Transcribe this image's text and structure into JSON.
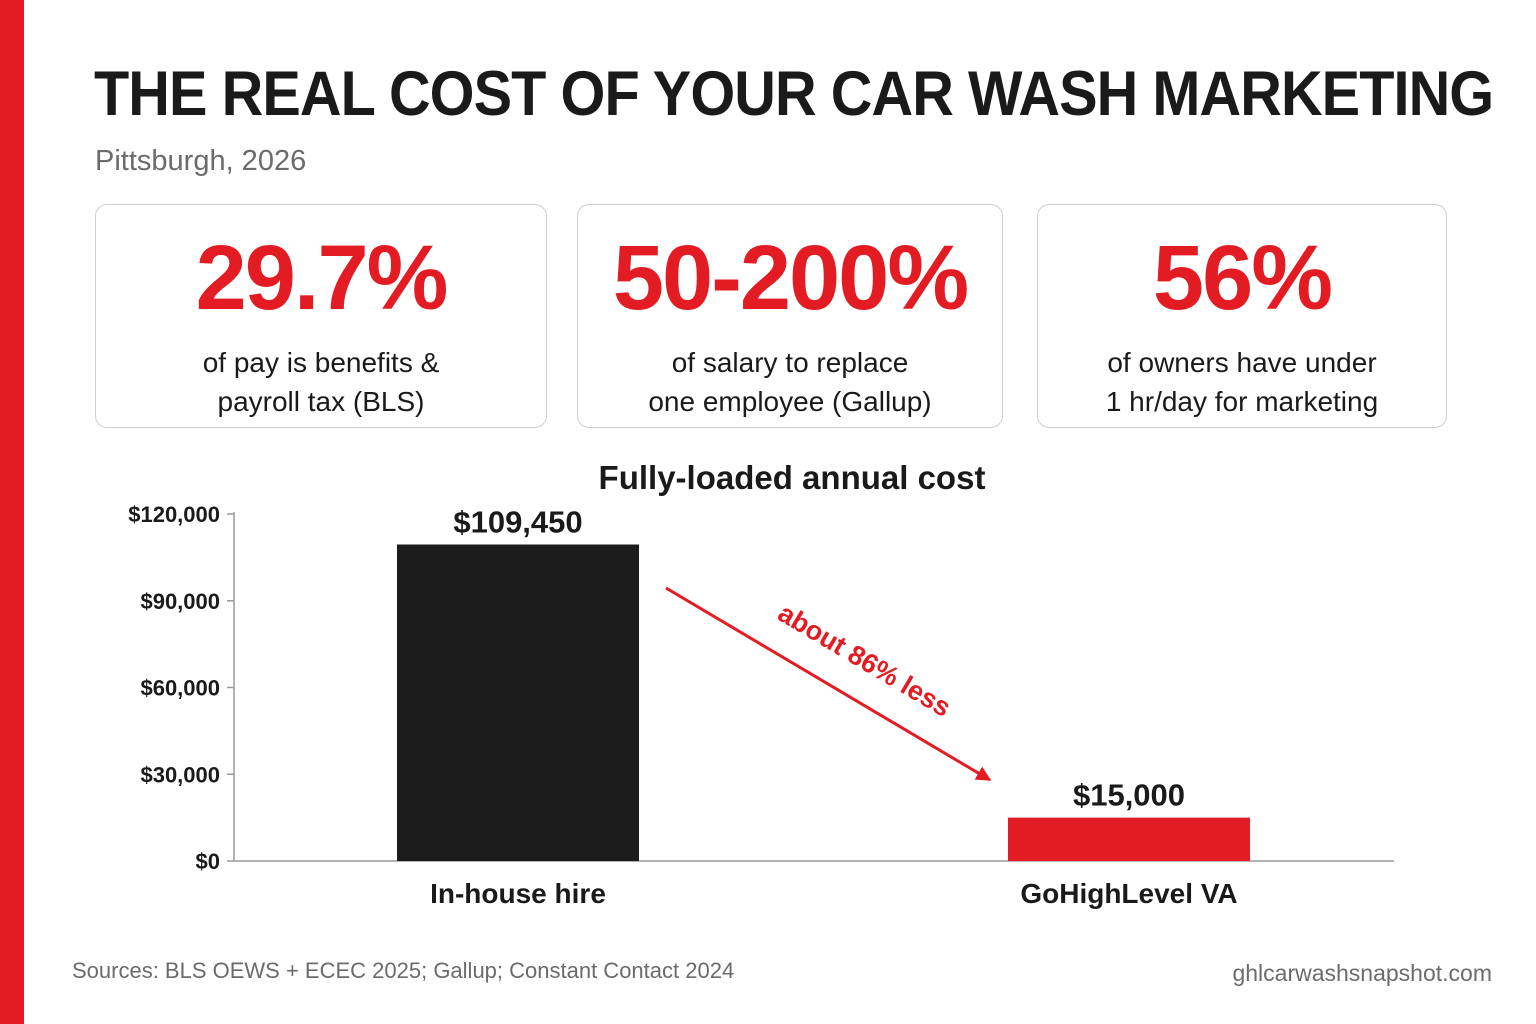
{
  "header": {
    "title": "THE REAL COST OF YOUR CAR WASH MARKETING",
    "subtitle": "Pittsburgh, 2026"
  },
  "stats": [
    {
      "value": "29.7%",
      "caption_lines": [
        "of pay is benefits &",
        "payroll tax (BLS)"
      ]
    },
    {
      "value": "50-200%",
      "caption_lines": [
        "of salary to replace",
        "one employee (Gallup)"
      ]
    },
    {
      "value": "56%",
      "caption_lines": [
        "of owners have under",
        "1 hr/day for marketing"
      ]
    }
  ],
  "chart_data": {
    "type": "bar",
    "title": "Fully-loaded annual cost",
    "categories": [
      "In-house hire",
      "GoHighLevel VA"
    ],
    "values": [
      109450,
      15000
    ],
    "value_labels": [
      "$109,450",
      "$15,000"
    ],
    "bar_colors": [
      "#1c1c1c",
      "#e31b23"
    ],
    "ylim": [
      0,
      120000
    ],
    "yticks": [
      0,
      30000,
      60000,
      90000,
      120000
    ],
    "ytick_labels": [
      "$0",
      "$30,000",
      "$60,000",
      "$90,000",
      "$120,000"
    ],
    "annotation": "about 86% less",
    "grid": false,
    "legend": "none"
  },
  "footer": {
    "sources": "Sources: BLS OEWS + ECEC 2025; Gallup; Constant Contact 2024",
    "website": "ghlcarwashsnapshot.com"
  },
  "colors": {
    "accent": "#e31b23",
    "dark": "#1c1c1c",
    "muted_text": "#6b6b6b"
  }
}
